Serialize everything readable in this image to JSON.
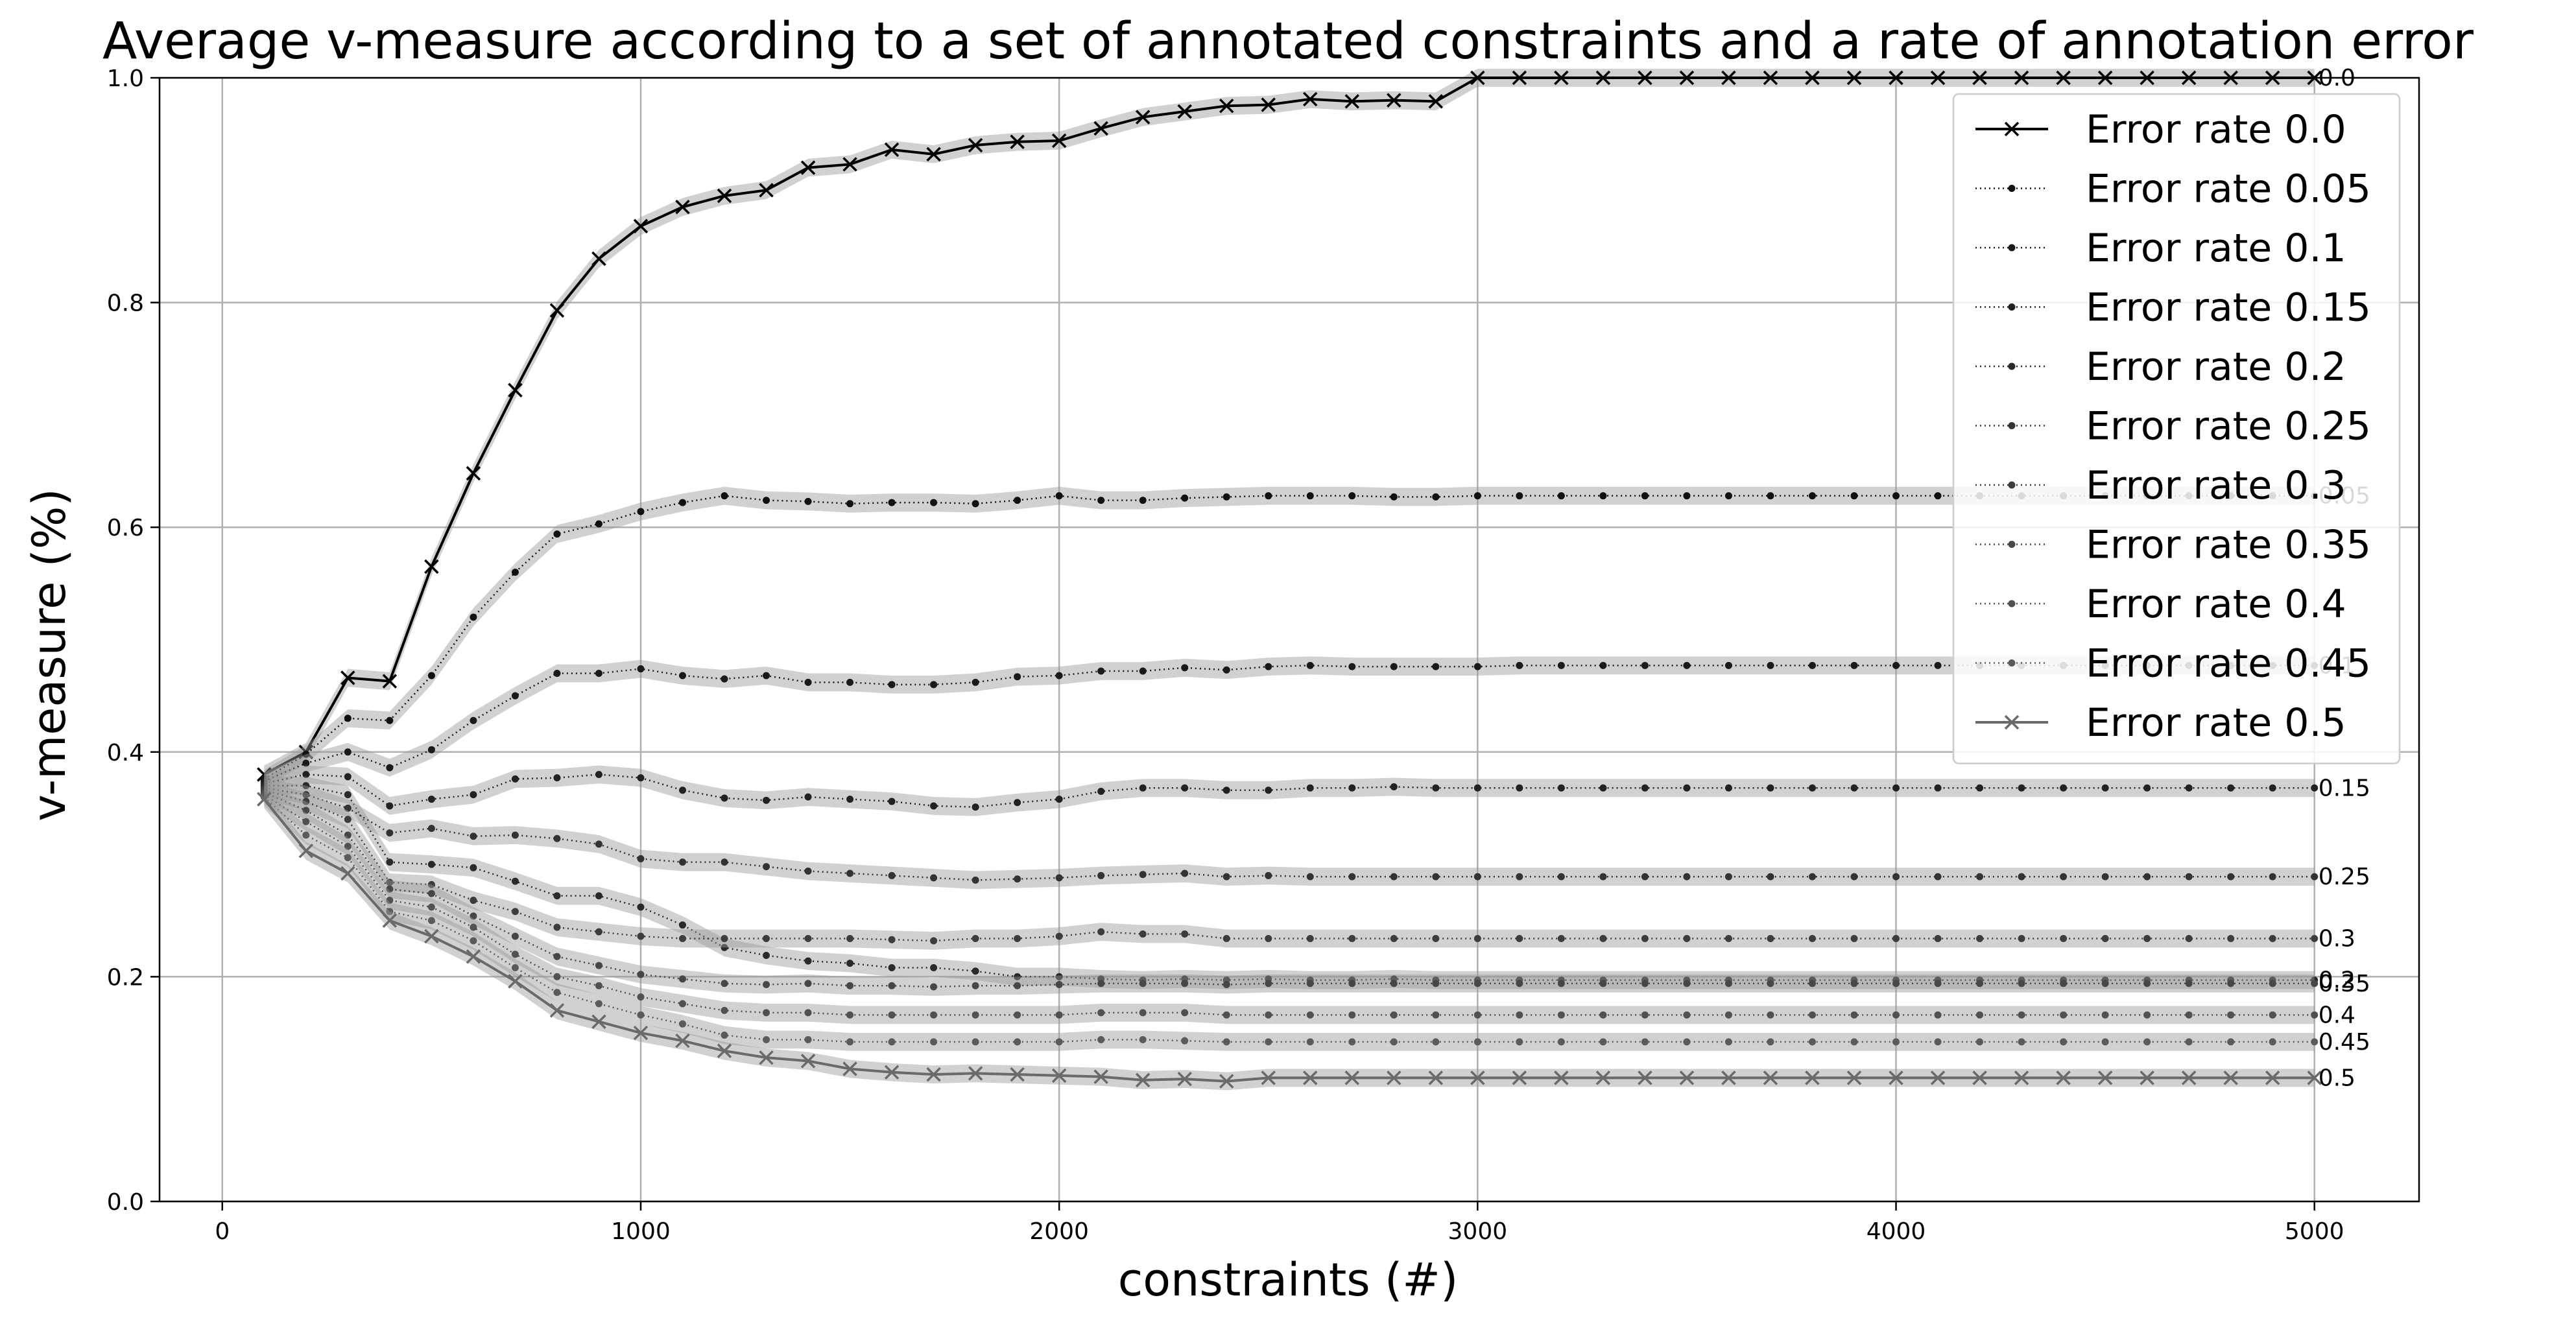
{
  "chart_data": {
    "type": "line",
    "title": "Average v-measure according to a set of annotated constraints and a rate of annotation error",
    "xlabel": "constraints (#)",
    "ylabel": "v-measure (%)",
    "xlim": [
      -150,
      5250
    ],
    "ylim": [
      0.0,
      1.0
    ],
    "xticks": [
      0,
      1000,
      2000,
      3000,
      4000,
      5000
    ],
    "xtick_labels": [
      "0",
      "1000",
      "2000",
      "3000",
      "4000",
      "5000"
    ],
    "yticks": [
      0.0,
      0.2,
      0.4,
      0.6,
      0.8,
      1.0
    ],
    "ytick_labels": [
      "0.0",
      "0.2",
      "0.4",
      "0.6",
      "0.8",
      "1.0"
    ],
    "grid": true,
    "legend": "top-right",
    "x": [
      100,
      200,
      300,
      400,
      500,
      600,
      700,
      800,
      900,
      1000,
      1100,
      1200,
      1300,
      1400,
      1500,
      1600,
      1700,
      1800,
      1900,
      2000,
      2100,
      2200,
      2300,
      2400,
      2500,
      2600,
      2700,
      2800,
      2900,
      3000,
      3100,
      3200,
      3300,
      3400,
      3500,
      3600,
      3700,
      3800,
      3900,
      4000,
      4100,
      4200,
      4300,
      4400,
      4500,
      4600,
      4700,
      4800,
      4900,
      5000
    ],
    "series": [
      {
        "name": "Error rate 0.0",
        "end_label": "0.0",
        "color": "#000000",
        "marker": "x",
        "linestyle": "solid",
        "values": [
          0.38,
          0.4,
          0.466,
          0.463,
          0.565,
          0.648,
          0.722,
          0.793,
          0.839,
          0.868,
          0.885,
          0.895,
          0.9,
          0.92,
          0.923,
          0.936,
          0.932,
          0.94,
          0.943,
          0.944,
          0.955,
          0.965,
          0.97,
          0.975,
          0.976,
          0.981,
          0.979,
          0.98,
          0.979,
          1.0,
          1.0,
          1.0,
          1.0,
          1.0,
          1.0,
          1.0,
          1.0,
          1.0,
          1.0,
          1.0,
          1.0,
          1.0,
          1.0,
          1.0,
          1.0,
          1.0,
          1.0,
          1.0,
          1.0,
          1.0
        ]
      },
      {
        "name": "Error rate 0.05",
        "end_label": "0.05",
        "color": "#111111",
        "marker": "dot",
        "linestyle": "dotted",
        "values": [
          0.376,
          0.398,
          0.43,
          0.428,
          0.468,
          0.52,
          0.56,
          0.594,
          0.603,
          0.614,
          0.622,
          0.628,
          0.624,
          0.623,
          0.621,
          0.622,
          0.622,
          0.621,
          0.624,
          0.628,
          0.624,
          0.624,
          0.626,
          0.627,
          0.628,
          0.628,
          0.628,
          0.627,
          0.627,
          0.628,
          0.628,
          0.628,
          0.628,
          0.628,
          0.628,
          0.628,
          0.628,
          0.628,
          0.628,
          0.628,
          0.628,
          0.628,
          0.628,
          0.628,
          0.628,
          0.628,
          0.628,
          0.628,
          0.628,
          0.628
        ]
      },
      {
        "name": "Error rate 0.1",
        "end_label": "0.1",
        "color": "#1a1a1a",
        "marker": "dot",
        "linestyle": "dotted",
        "values": [
          0.374,
          0.39,
          0.4,
          0.386,
          0.402,
          0.428,
          0.45,
          0.47,
          0.47,
          0.474,
          0.468,
          0.465,
          0.468,
          0.462,
          0.462,
          0.46,
          0.46,
          0.462,
          0.467,
          0.468,
          0.472,
          0.472,
          0.475,
          0.473,
          0.476,
          0.477,
          0.476,
          0.476,
          0.476,
          0.476,
          0.477,
          0.477,
          0.477,
          0.477,
          0.477,
          0.477,
          0.477,
          0.477,
          0.477,
          0.477,
          0.477,
          0.477,
          0.477,
          0.477,
          0.477,
          0.477,
          0.477,
          0.477,
          0.477,
          0.477
        ]
      },
      {
        "name": "Error rate 0.15",
        "end_label": "0.15",
        "color": "#222222",
        "marker": "dot",
        "linestyle": "dotted",
        "values": [
          0.372,
          0.38,
          0.378,
          0.352,
          0.358,
          0.362,
          0.376,
          0.377,
          0.38,
          0.377,
          0.366,
          0.359,
          0.357,
          0.36,
          0.358,
          0.356,
          0.352,
          0.351,
          0.355,
          0.358,
          0.365,
          0.368,
          0.368,
          0.366,
          0.366,
          0.368,
          0.368,
          0.369,
          0.368,
          0.368,
          0.368,
          0.368,
          0.368,
          0.368,
          0.368,
          0.368,
          0.368,
          0.368,
          0.368,
          0.368,
          0.368,
          0.368,
          0.368,
          0.368,
          0.368,
          0.368,
          0.368,
          0.368,
          0.368,
          0.368
        ]
      },
      {
        "name": "Error rate 0.2",
        "end_label": "0.2",
        "color": "#2a2a2a",
        "marker": "dot",
        "linestyle": "dotted",
        "values": [
          0.37,
          0.37,
          0.362,
          0.302,
          0.3,
          0.297,
          0.285,
          0.272,
          0.272,
          0.262,
          0.246,
          0.226,
          0.219,
          0.214,
          0.212,
          0.208,
          0.208,
          0.205,
          0.2,
          0.2,
          0.198,
          0.197,
          0.198,
          0.197,
          0.198,
          0.197,
          0.197,
          0.198,
          0.197,
          0.197,
          0.197,
          0.197,
          0.197,
          0.197,
          0.197,
          0.197,
          0.197,
          0.197,
          0.197,
          0.197,
          0.197,
          0.197,
          0.197,
          0.197,
          0.197,
          0.197,
          0.197,
          0.197,
          0.197,
          0.197
        ]
      },
      {
        "name": "Error rate 0.25",
        "end_label": "0.25",
        "color": "#333333",
        "marker": "dot",
        "linestyle": "dotted",
        "values": [
          0.368,
          0.362,
          0.35,
          0.328,
          0.332,
          0.325,
          0.326,
          0.323,
          0.318,
          0.305,
          0.302,
          0.302,
          0.298,
          0.294,
          0.292,
          0.29,
          0.288,
          0.286,
          0.287,
          0.288,
          0.29,
          0.291,
          0.292,
          0.289,
          0.29,
          0.289,
          0.289,
          0.289,
          0.289,
          0.289,
          0.289,
          0.289,
          0.289,
          0.289,
          0.289,
          0.289,
          0.289,
          0.289,
          0.289,
          0.289,
          0.289,
          0.289,
          0.289,
          0.289,
          0.289,
          0.289,
          0.289,
          0.289,
          0.289,
          0.289
        ]
      },
      {
        "name": "Error rate 0.3",
        "end_label": "0.3",
        "color": "#3d3d3d",
        "marker": "dot",
        "linestyle": "dotted",
        "values": [
          0.366,
          0.356,
          0.34,
          0.284,
          0.282,
          0.268,
          0.258,
          0.244,
          0.24,
          0.236,
          0.234,
          0.234,
          0.234,
          0.234,
          0.234,
          0.233,
          0.232,
          0.234,
          0.234,
          0.236,
          0.24,
          0.238,
          0.238,
          0.234,
          0.234,
          0.234,
          0.234,
          0.234,
          0.234,
          0.234,
          0.234,
          0.234,
          0.234,
          0.234,
          0.234,
          0.234,
          0.234,
          0.234,
          0.234,
          0.234,
          0.234,
          0.234,
          0.234,
          0.234,
          0.234,
          0.234,
          0.234,
          0.234,
          0.234,
          0.234
        ]
      },
      {
        "name": "Error rate 0.35",
        "end_label": "0.35",
        "color": "#474747",
        "marker": "dot",
        "linestyle": "dotted",
        "values": [
          0.364,
          0.348,
          0.326,
          0.278,
          0.274,
          0.254,
          0.236,
          0.218,
          0.21,
          0.202,
          0.198,
          0.194,
          0.193,
          0.194,
          0.192,
          0.192,
          0.191,
          0.192,
          0.192,
          0.193,
          0.194,
          0.194,
          0.194,
          0.193,
          0.194,
          0.194,
          0.194,
          0.194,
          0.194,
          0.194,
          0.194,
          0.194,
          0.194,
          0.194,
          0.194,
          0.194,
          0.194,
          0.194,
          0.194,
          0.194,
          0.194,
          0.194,
          0.194,
          0.194,
          0.194,
          0.194,
          0.194,
          0.194,
          0.194,
          0.194
        ]
      },
      {
        "name": "Error rate 0.4",
        "end_label": "0.4",
        "color": "#515151",
        "marker": "dot",
        "linestyle": "dotted",
        "values": [
          0.362,
          0.338,
          0.316,
          0.268,
          0.262,
          0.244,
          0.22,
          0.2,
          0.192,
          0.182,
          0.176,
          0.17,
          0.168,
          0.168,
          0.166,
          0.166,
          0.166,
          0.166,
          0.166,
          0.166,
          0.168,
          0.168,
          0.168,
          0.166,
          0.166,
          0.166,
          0.166,
          0.166,
          0.166,
          0.166,
          0.166,
          0.166,
          0.166,
          0.166,
          0.166,
          0.166,
          0.166,
          0.166,
          0.166,
          0.166,
          0.166,
          0.166,
          0.166,
          0.166,
          0.166,
          0.166,
          0.166,
          0.166,
          0.166,
          0.166
        ]
      },
      {
        "name": "Error rate 0.45",
        "end_label": "0.45",
        "color": "#5b5b5b",
        "marker": "dot",
        "linestyle": "dotted",
        "values": [
          0.36,
          0.326,
          0.306,
          0.258,
          0.25,
          0.232,
          0.208,
          0.186,
          0.176,
          0.166,
          0.158,
          0.148,
          0.144,
          0.144,
          0.142,
          0.142,
          0.142,
          0.142,
          0.142,
          0.142,
          0.144,
          0.144,
          0.143,
          0.142,
          0.142,
          0.142,
          0.142,
          0.142,
          0.142,
          0.142,
          0.142,
          0.142,
          0.142,
          0.142,
          0.142,
          0.142,
          0.142,
          0.142,
          0.142,
          0.142,
          0.142,
          0.142,
          0.142,
          0.142,
          0.142,
          0.142,
          0.142,
          0.142,
          0.142,
          0.142
        ]
      },
      {
        "name": "Error rate 0.5",
        "end_label": "0.5",
        "color": "#6a6a6a",
        "marker": "x",
        "linestyle": "solid",
        "values": [
          0.358,
          0.312,
          0.292,
          0.25,
          0.236,
          0.218,
          0.196,
          0.17,
          0.16,
          0.15,
          0.143,
          0.134,
          0.128,
          0.125,
          0.118,
          0.115,
          0.113,
          0.114,
          0.113,
          0.112,
          0.111,
          0.108,
          0.109,
          0.107,
          0.11,
          0.11,
          0.11,
          0.11,
          0.11,
          0.11,
          0.11,
          0.11,
          0.11,
          0.11,
          0.11,
          0.11,
          0.11,
          0.11,
          0.11,
          0.11,
          0.11,
          0.11,
          0.11,
          0.11,
          0.11,
          0.11,
          0.11,
          0.11,
          0.11,
          0.11
        ]
      }
    ]
  }
}
